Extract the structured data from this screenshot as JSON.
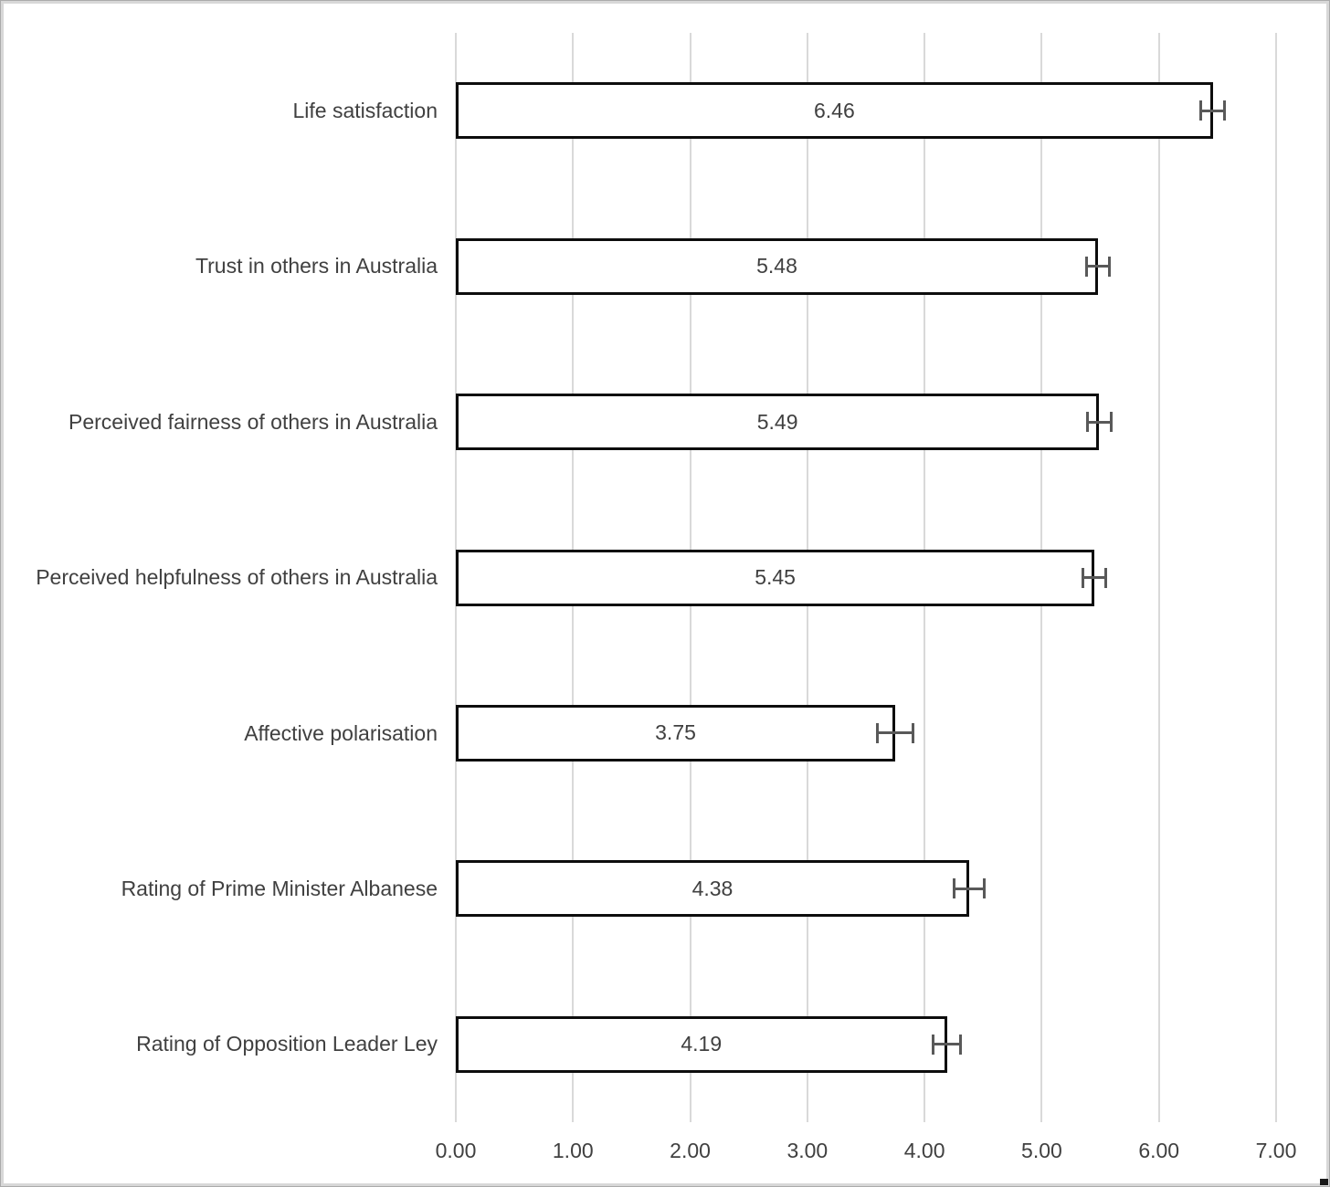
{
  "chart_data": {
    "type": "bar",
    "orientation": "horizontal",
    "title": "",
    "categories": [
      "Life satisfaction",
      "Trust in others in Australia",
      "Perceived fairness of others in Australia",
      "Perceived helpfulness of others in Australia",
      "Affective polarisation",
      "Rating of Prime Minister Albanese",
      "Rating of Opposition Leader Ley"
    ],
    "values": [
      6.46,
      5.48,
      5.49,
      5.45,
      3.75,
      4.38,
      4.19
    ],
    "data_labels": [
      "6.46",
      "5.48",
      "5.49",
      "5.45",
      "3.75",
      "4.38",
      "4.19"
    ],
    "error_bars": [
      0.1,
      0.1,
      0.1,
      0.1,
      0.15,
      0.13,
      0.12
    ],
    "xlim": [
      0,
      7
    ],
    "x_ticks": [
      "0.00",
      "1.00",
      "2.00",
      "3.00",
      "4.00",
      "5.00",
      "6.00",
      "7.00"
    ],
    "grid": "vertical-only",
    "legend": "none",
    "colors": {
      "bar_fill": "#ffffff",
      "bar_border": "#0d0d0d",
      "gridline": "#d9d9d9",
      "error_bar": "#595959",
      "text": "#404040",
      "frame_border": "#d8d8d8"
    }
  }
}
